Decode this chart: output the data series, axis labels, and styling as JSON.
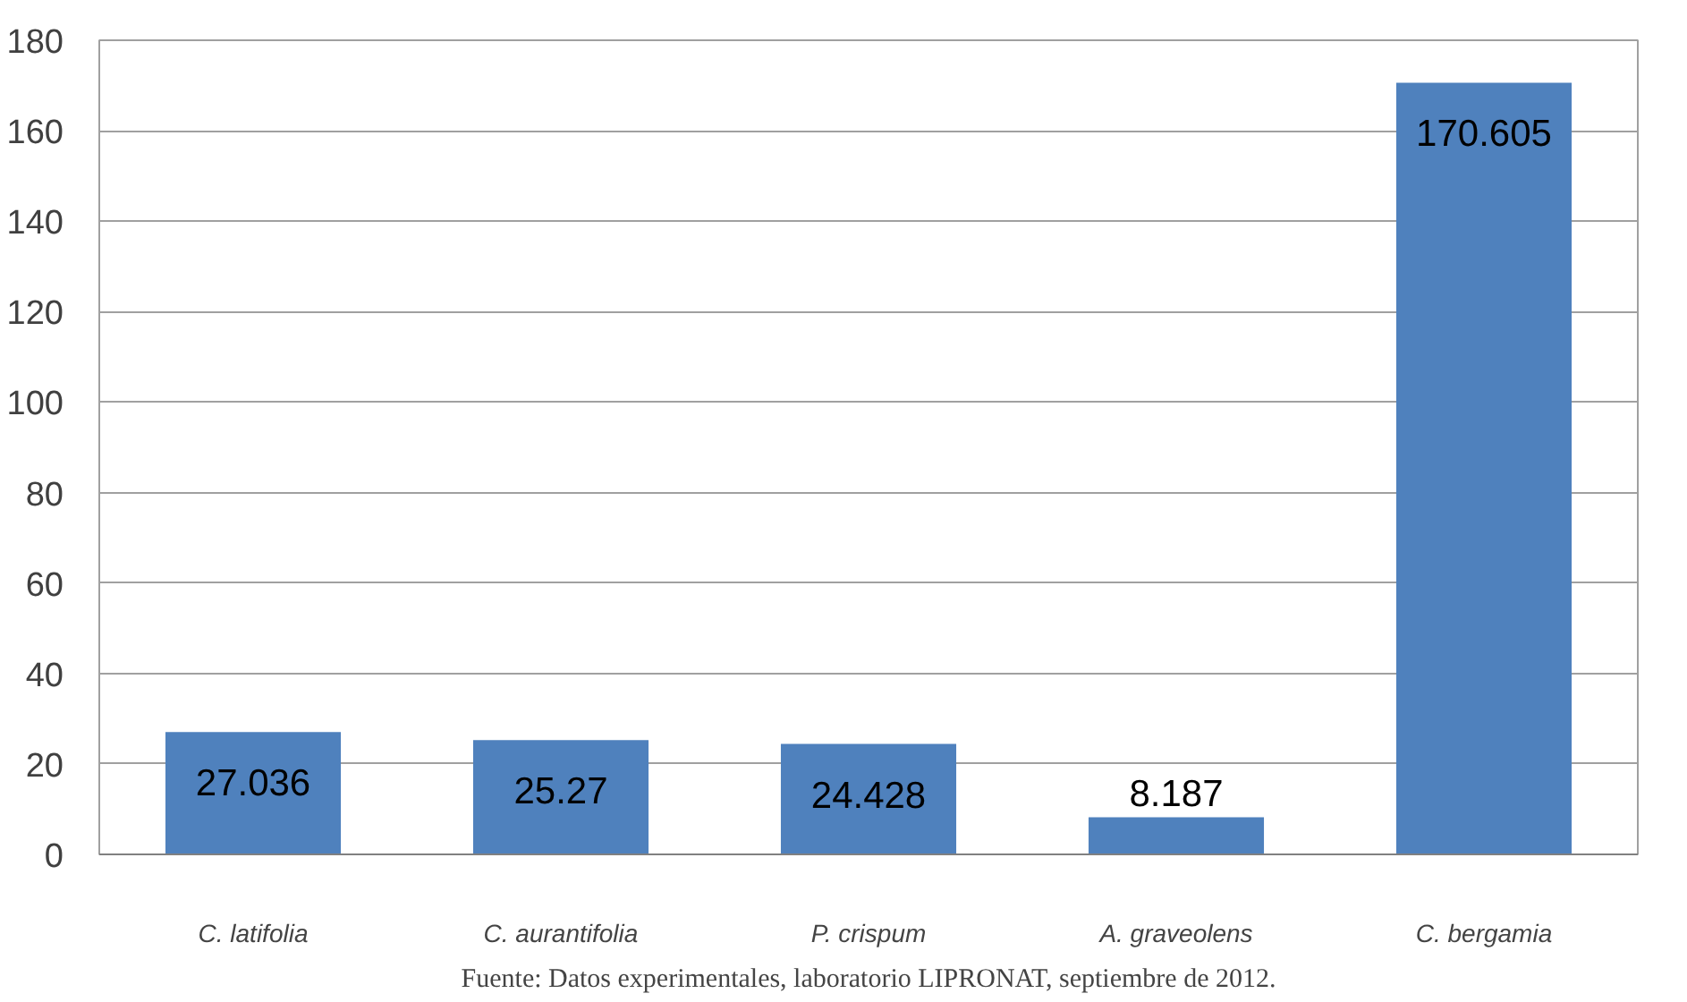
{
  "chart_data": {
    "type": "bar",
    "categories": [
      "C. latifolia",
      "C. aurantifolia",
      "P. crispum",
      "A. graveolens",
      "C. bergamia"
    ],
    "values": [
      27.036,
      25.27,
      24.428,
      8.187,
      170.605
    ],
    "color": "#4f81bd",
    "ylim": [
      0,
      180
    ],
    "yticks": [
      0,
      20,
      40,
      60,
      80,
      100,
      120,
      140,
      160,
      180
    ],
    "grid": "y",
    "data_labels": true,
    "annotations": [
      "Fuente: Datos experimentales, laboratorio LIPRONAT, septiembre de 2012."
    ]
  }
}
